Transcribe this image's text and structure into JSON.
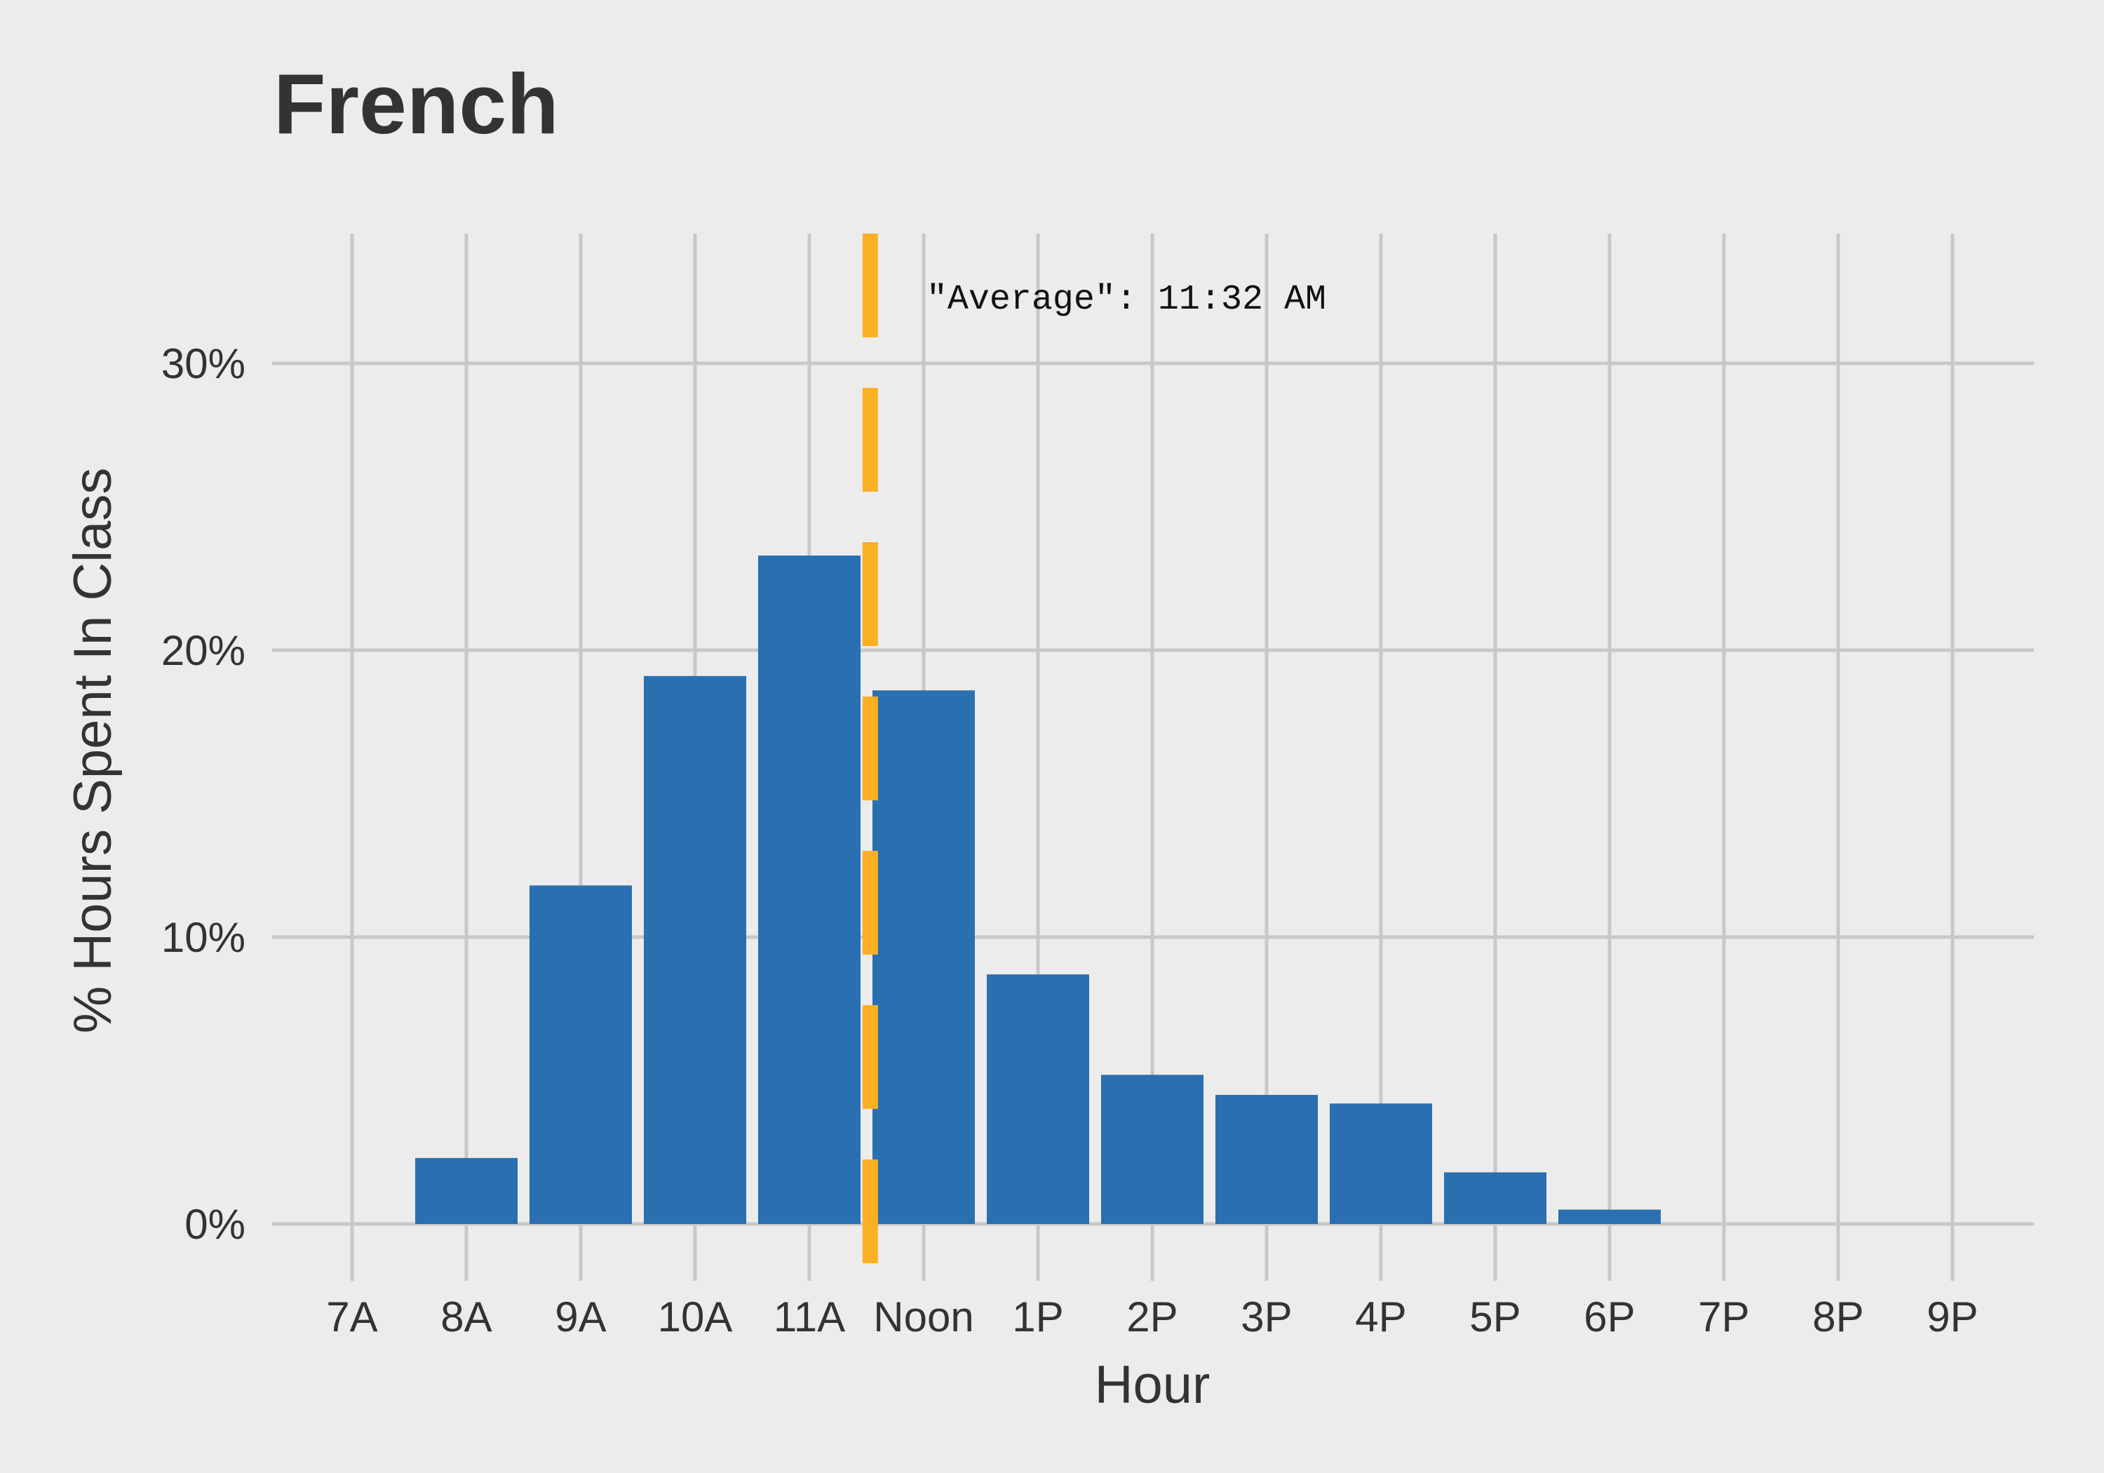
{
  "chart_data": {
    "type": "bar",
    "title": "French",
    "xlabel": "Hour",
    "ylabel": "% Hours Spent In Class",
    "categories": [
      "7A",
      "8A",
      "9A",
      "10A",
      "11A",
      "Noon",
      "1P",
      "2P",
      "3P",
      "4P",
      "5P",
      "6P",
      "7P",
      "8P",
      "9P"
    ],
    "values": [
      0,
      2.3,
      11.8,
      19.1,
      23.3,
      18.6,
      8.7,
      5.2,
      4.5,
      4.2,
      1.8,
      0.5,
      0,
      0,
      0
    ],
    "y_ticks": [
      "0%",
      "10%",
      "20%",
      "30%"
    ],
    "y_tick_values": [
      0,
      10,
      20,
      30
    ],
    "ylim": [
      -1.6,
      34.6
    ],
    "grid": true,
    "average_line": {
      "hour_index": 4.533,
      "label": "\"Average\": 11:32 AM"
    },
    "colors": {
      "bar": "#2a6fb0",
      "average_line": "#fcaf23",
      "grid": "#c8c8c8",
      "background": "#ececec"
    }
  }
}
